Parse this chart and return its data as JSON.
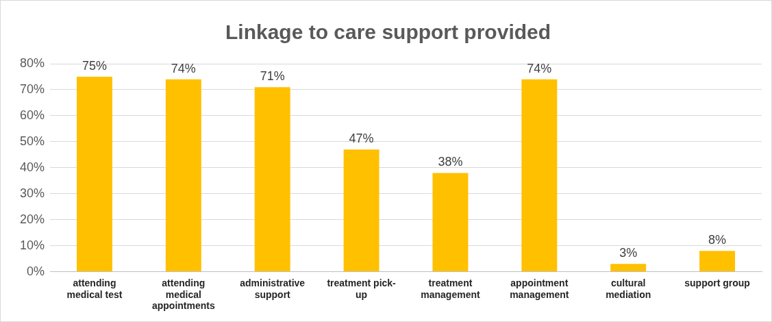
{
  "chart_data": {
    "type": "bar",
    "title": "Linkage to care support provided",
    "categories": [
      "attending\nmedical test",
      "attending\nmedical\nappointments",
      "administrative\nsupport",
      "treatment pick-\nup",
      "treatment\nmanagement",
      "appointment\nmanagement",
      "cultural\nmediation",
      "support group"
    ],
    "values": [
      75,
      74,
      71,
      47,
      38,
      74,
      3,
      8
    ],
    "value_labels": [
      "75%",
      "74%",
      "71%",
      "47%",
      "38%",
      "74%",
      "3%",
      "8%"
    ],
    "color": "#ffc000",
    "ylim": [
      0,
      80
    ],
    "yticks": [
      {
        "value": 0,
        "label": "0%"
      },
      {
        "value": 10,
        "label": "10%"
      },
      {
        "value": 20,
        "label": "20%"
      },
      {
        "value": 30,
        "label": "30%"
      },
      {
        "value": 40,
        "label": "40%"
      },
      {
        "value": 50,
        "label": "50%"
      },
      {
        "value": 60,
        "label": "60%"
      },
      {
        "value": 70,
        "label": "70%"
      },
      {
        "value": 80,
        "label": "80%"
      }
    ],
    "grid": "y",
    "legend": false
  }
}
